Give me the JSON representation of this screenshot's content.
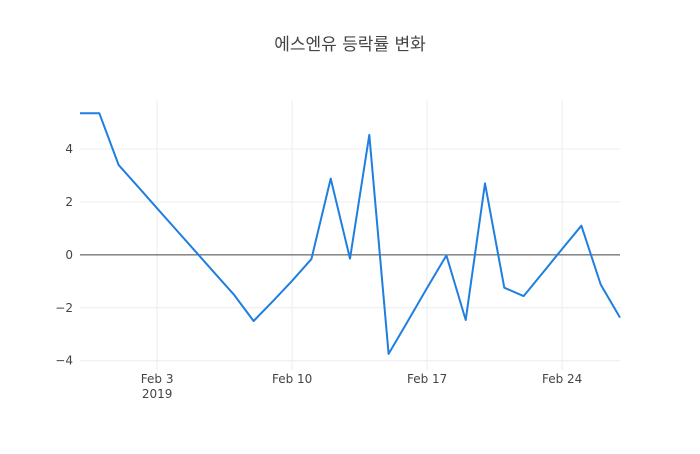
{
  "chart_data": {
    "type": "line",
    "title": "에스엔유 등락률 변화",
    "xlabel": "",
    "ylabel": "",
    "x": [
      "2019-01-30",
      "2019-01-31",
      "2019-02-01",
      "2019-02-02",
      "2019-02-03",
      "2019-02-04",
      "2019-02-05",
      "2019-02-06",
      "2019-02-07",
      "2019-02-08",
      "2019-02-09",
      "2019-02-10",
      "2019-02-11",
      "2019-02-12",
      "2019-02-13",
      "2019-02-14",
      "2019-02-15",
      "2019-02-16",
      "2019-02-17",
      "2019-02-18",
      "2019-02-19",
      "2019-02-20",
      "2019-02-21",
      "2019-02-22",
      "2019-02-23",
      "2019-02-24",
      "2019-02-25",
      "2019-02-26",
      "2019-02-27"
    ],
    "y": [
      5.35,
      5.35,
      3.4,
      2.58,
      1.76,
      0.94,
      0.12,
      -0.7,
      -1.52,
      -2.5,
      -1.75,
      -0.98,
      -0.16,
      2.88,
      -0.14,
      4.53,
      -3.74,
      -2.5,
      -1.25,
      -0.02,
      -2.46,
      2.7,
      -1.24,
      -1.56,
      -0.67,
      0.22,
      1.1,
      -1.12,
      -2.37
    ],
    "xlim": [
      "2019-01-30",
      "2019-02-27"
    ],
    "ylim": [
      -4.35,
      5.85
    ],
    "x_ticks": [
      {
        "value": "2019-02-03",
        "label": "Feb 3",
        "sublabel": "2019"
      },
      {
        "value": "2019-02-10",
        "label": "Feb 10",
        "sublabel": ""
      },
      {
        "value": "2019-02-17",
        "label": "Feb 17",
        "sublabel": ""
      },
      {
        "value": "2019-02-24",
        "label": "Feb 24",
        "sublabel": ""
      }
    ],
    "y_ticks": [
      {
        "value": 4,
        "label": "4"
      },
      {
        "value": 2,
        "label": "2"
      },
      {
        "value": 0,
        "label": "0"
      },
      {
        "value": -2,
        "label": "−2"
      },
      {
        "value": -4,
        "label": "−4"
      }
    ],
    "grid": true,
    "zero_line": true,
    "legend": "none",
    "colors": {
      "line": "#1f7fe0",
      "grid": "#ececec",
      "zero_line": "#444444",
      "tick_text": "#444444",
      "title_text": "#444444"
    }
  }
}
